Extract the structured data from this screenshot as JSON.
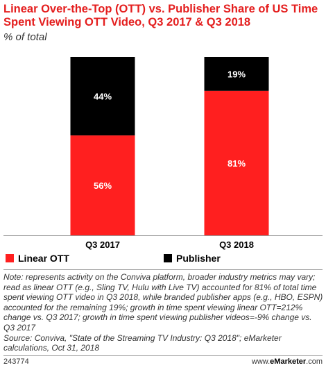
{
  "header": {
    "title": "Linear Over-the-Top (OTT) vs. Publisher Share of US Time Spent Viewing OTT Video, Q3 2017 & Q3 2018",
    "subtitle": "% of total"
  },
  "chart_data": {
    "type": "bar",
    "stacked": true,
    "categories": [
      "Q3 2017",
      "Q3 2018"
    ],
    "series": [
      {
        "name": "Linear OTT",
        "values": [
          56,
          81
        ],
        "labels": [
          "56%",
          "81%"
        ],
        "color": "#ff1f1f"
      },
      {
        "name": "Publisher",
        "values": [
          44,
          19
        ],
        "labels": [
          "44%",
          "19%"
        ],
        "color": "#000000"
      }
    ],
    "ylim": [
      0,
      100
    ],
    "grid": false,
    "legend_position": "bottom-left"
  },
  "legend": [
    {
      "label": "Linear OTT",
      "color": "#ff1f1f"
    },
    {
      "label": "Publisher",
      "color": "#000000"
    }
  ],
  "note": "Note: represents activity on the Conviva platform, broader industry metrics may vary; read as linear OTT (e.g., Sling TV, Hulu with Live TV) accounted for 81% of total time spent viewing OTT video in Q3 2018, while branded publisher apps (e.g., HBO, ESPN) accounted for the remaining 19%; growth in time spent viewing linear OTT=212% change vs. Q3 2017; growth in time spent viewing publisher videos=-9% change vs. Q3 2017",
  "source": "Source: Conviva, \"State of the Streaming TV Industry: Q3 2018\"; eMarketer calculations, Oct 31, 2018",
  "footer": {
    "chart_id": "243774",
    "brand_prefix": "www.",
    "brand_name": "eMarketer",
    "brand_suffix": ".com"
  }
}
